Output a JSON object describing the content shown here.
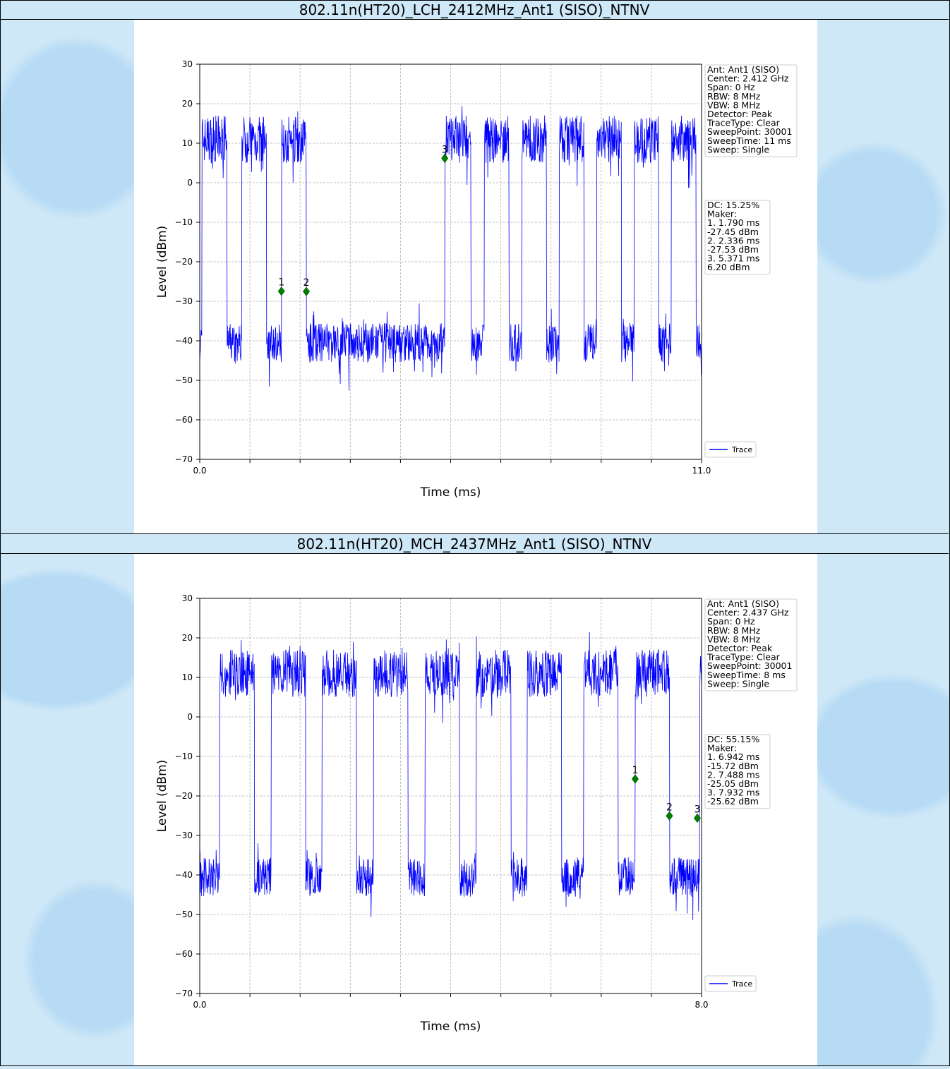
{
  "chart_data": [
    {
      "type": "line",
      "title": "802.11n(HT20)_LCH_2412MHz_Ant1 (SISO)_NTNV",
      "xlabel": "Time (ms)",
      "ylabel": "Level (dBm)",
      "xlim": [
        0.0,
        11.0
      ],
      "ylim": [
        -70,
        30
      ],
      "x_tick_labels": [
        "0.0",
        "11.0"
      ],
      "y_ticks": [
        30,
        20,
        10,
        0,
        -10,
        -20,
        -30,
        -40,
        -50,
        -60,
        -70
      ],
      "grid": true,
      "legend": {
        "position": "bottom-right-outside",
        "entries": [
          "Trace"
        ]
      },
      "info_lines": [
        "Ant: Ant1 (SISO)",
        "Center: 2.412 GHz",
        "Span: 0 Hz",
        "RBW: 8 MHz",
        "VBW: 8 MHz",
        "Detector: Peak",
        "TraceType: Clear",
        "SweepPoint: 30001",
        "SweepTime: 11 ms",
        "Sweep: Single"
      ],
      "marker_lines": [
        "DC: 15.25%",
        "Maker:",
        "1. 1.790 ms",
        "    -27.45 dBm",
        "2. 2.336 ms",
        "    -27.53 dBm",
        "3. 5.371 ms",
        "    6.20 dBm"
      ],
      "markers": [
        {
          "label": "1",
          "x": 1.79,
          "y": -27.45
        },
        {
          "label": "2",
          "x": 2.336,
          "y": -27.53
        },
        {
          "label": "3",
          "x": 5.371,
          "y": 6.2
        }
      ],
      "series": [
        {
          "name": "Trace",
          "on_level": 11.0,
          "off_level": -40.5,
          "on_intervals": [
            [
              0.05,
              0.6
            ],
            [
              0.92,
              1.46
            ],
            [
              1.79,
              2.336
            ],
            [
              5.371,
              5.94
            ],
            [
              6.24,
              6.78
            ],
            [
              7.06,
              7.6
            ],
            [
              7.88,
              8.42
            ],
            [
              8.7,
              9.24
            ],
            [
              9.52,
              10.06
            ],
            [
              10.34,
              10.88
            ]
          ]
        }
      ]
    },
    {
      "type": "line",
      "title": "802.11n(HT20)_MCH_2437MHz_Ant1 (SISO)_NTNV",
      "xlabel": "Time (ms)",
      "ylabel": "Level (dBm)",
      "xlim": [
        0.0,
        8.0
      ],
      "ylim": [
        -70,
        30
      ],
      "x_tick_labels": [
        "0.0",
        "8.0"
      ],
      "y_ticks": [
        30,
        20,
        10,
        0,
        -10,
        -20,
        -30,
        -40,
        -50,
        -60,
        -70
      ],
      "grid": true,
      "legend": {
        "position": "bottom-right-outside",
        "entries": [
          "Trace"
        ]
      },
      "info_lines": [
        "Ant: Ant1 (SISO)",
        "Center: 2.437 GHz",
        "Span: 0 Hz",
        "RBW: 8 MHz",
        "VBW: 8 MHz",
        "Detector: Peak",
        "TraceType: Clear",
        "SweepPoint: 30001",
        "SweepTime: 8 ms",
        "Sweep: Single"
      ],
      "marker_lines": [
        "DC: 55.15%",
        "Maker:",
        "1. 6.942 ms",
        "    -15.72 dBm",
        "2. 7.488 ms",
        "    -25.05 dBm",
        "3. 7.932 ms",
        "    -25.62 dBm"
      ],
      "markers": [
        {
          "label": "1",
          "x": 6.942,
          "y": -15.72
        },
        {
          "label": "2",
          "x": 7.488,
          "y": -25.05
        },
        {
          "label": "3",
          "x": 7.932,
          "y": -25.62
        }
      ],
      "series": [
        {
          "name": "Trace",
          "on_level": 11.0,
          "off_level": -40.5,
          "on_intervals": [
            [
              0.32,
              0.87
            ],
            [
              1.14,
              1.69
            ],
            [
              1.95,
              2.5
            ],
            [
              2.77,
              3.32
            ],
            [
              3.59,
              4.14
            ],
            [
              4.41,
              4.96
            ],
            [
              5.22,
              5.77
            ],
            [
              6.12,
              6.67
            ],
            [
              6.942,
              7.488
            ],
            [
              7.97,
              8.0
            ]
          ]
        }
      ]
    }
  ]
}
